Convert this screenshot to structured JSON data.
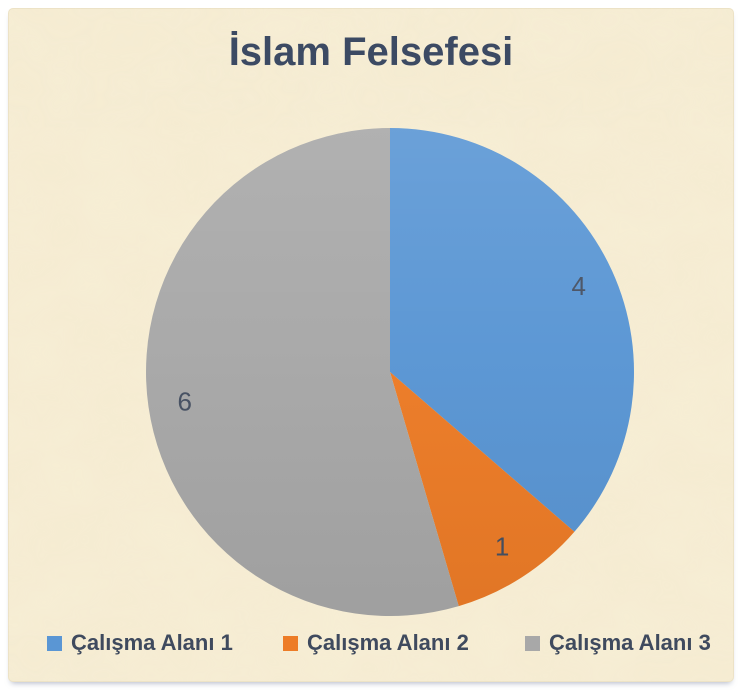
{
  "title": "İslam Felsefesi",
  "chart_data": {
    "type": "pie",
    "title": "İslam Felsefesi",
    "start_angle_deg": 0,
    "direction": "clockwise",
    "total": 11,
    "series": [
      {
        "name": "Çalışma Alanı 1",
        "value": 4,
        "color": "#5a96d4"
      },
      {
        "name": "Çalışma Alanı 2",
        "value": 1,
        "color": "#ed7c27"
      },
      {
        "name": "Çalışma Alanı 3",
        "value": 6,
        "color": "#a8a8a8"
      }
    ],
    "data_labels": [
      "4",
      "1",
      "6"
    ],
    "data_labels_visible": true,
    "legend_position": "bottom"
  },
  "colors": {
    "panel_background": "#f7eed5",
    "page_background": "#ffffff",
    "title_text": "#3c4a63",
    "data_label_text": "#46506b",
    "legend_text": "#3f4a5e"
  }
}
